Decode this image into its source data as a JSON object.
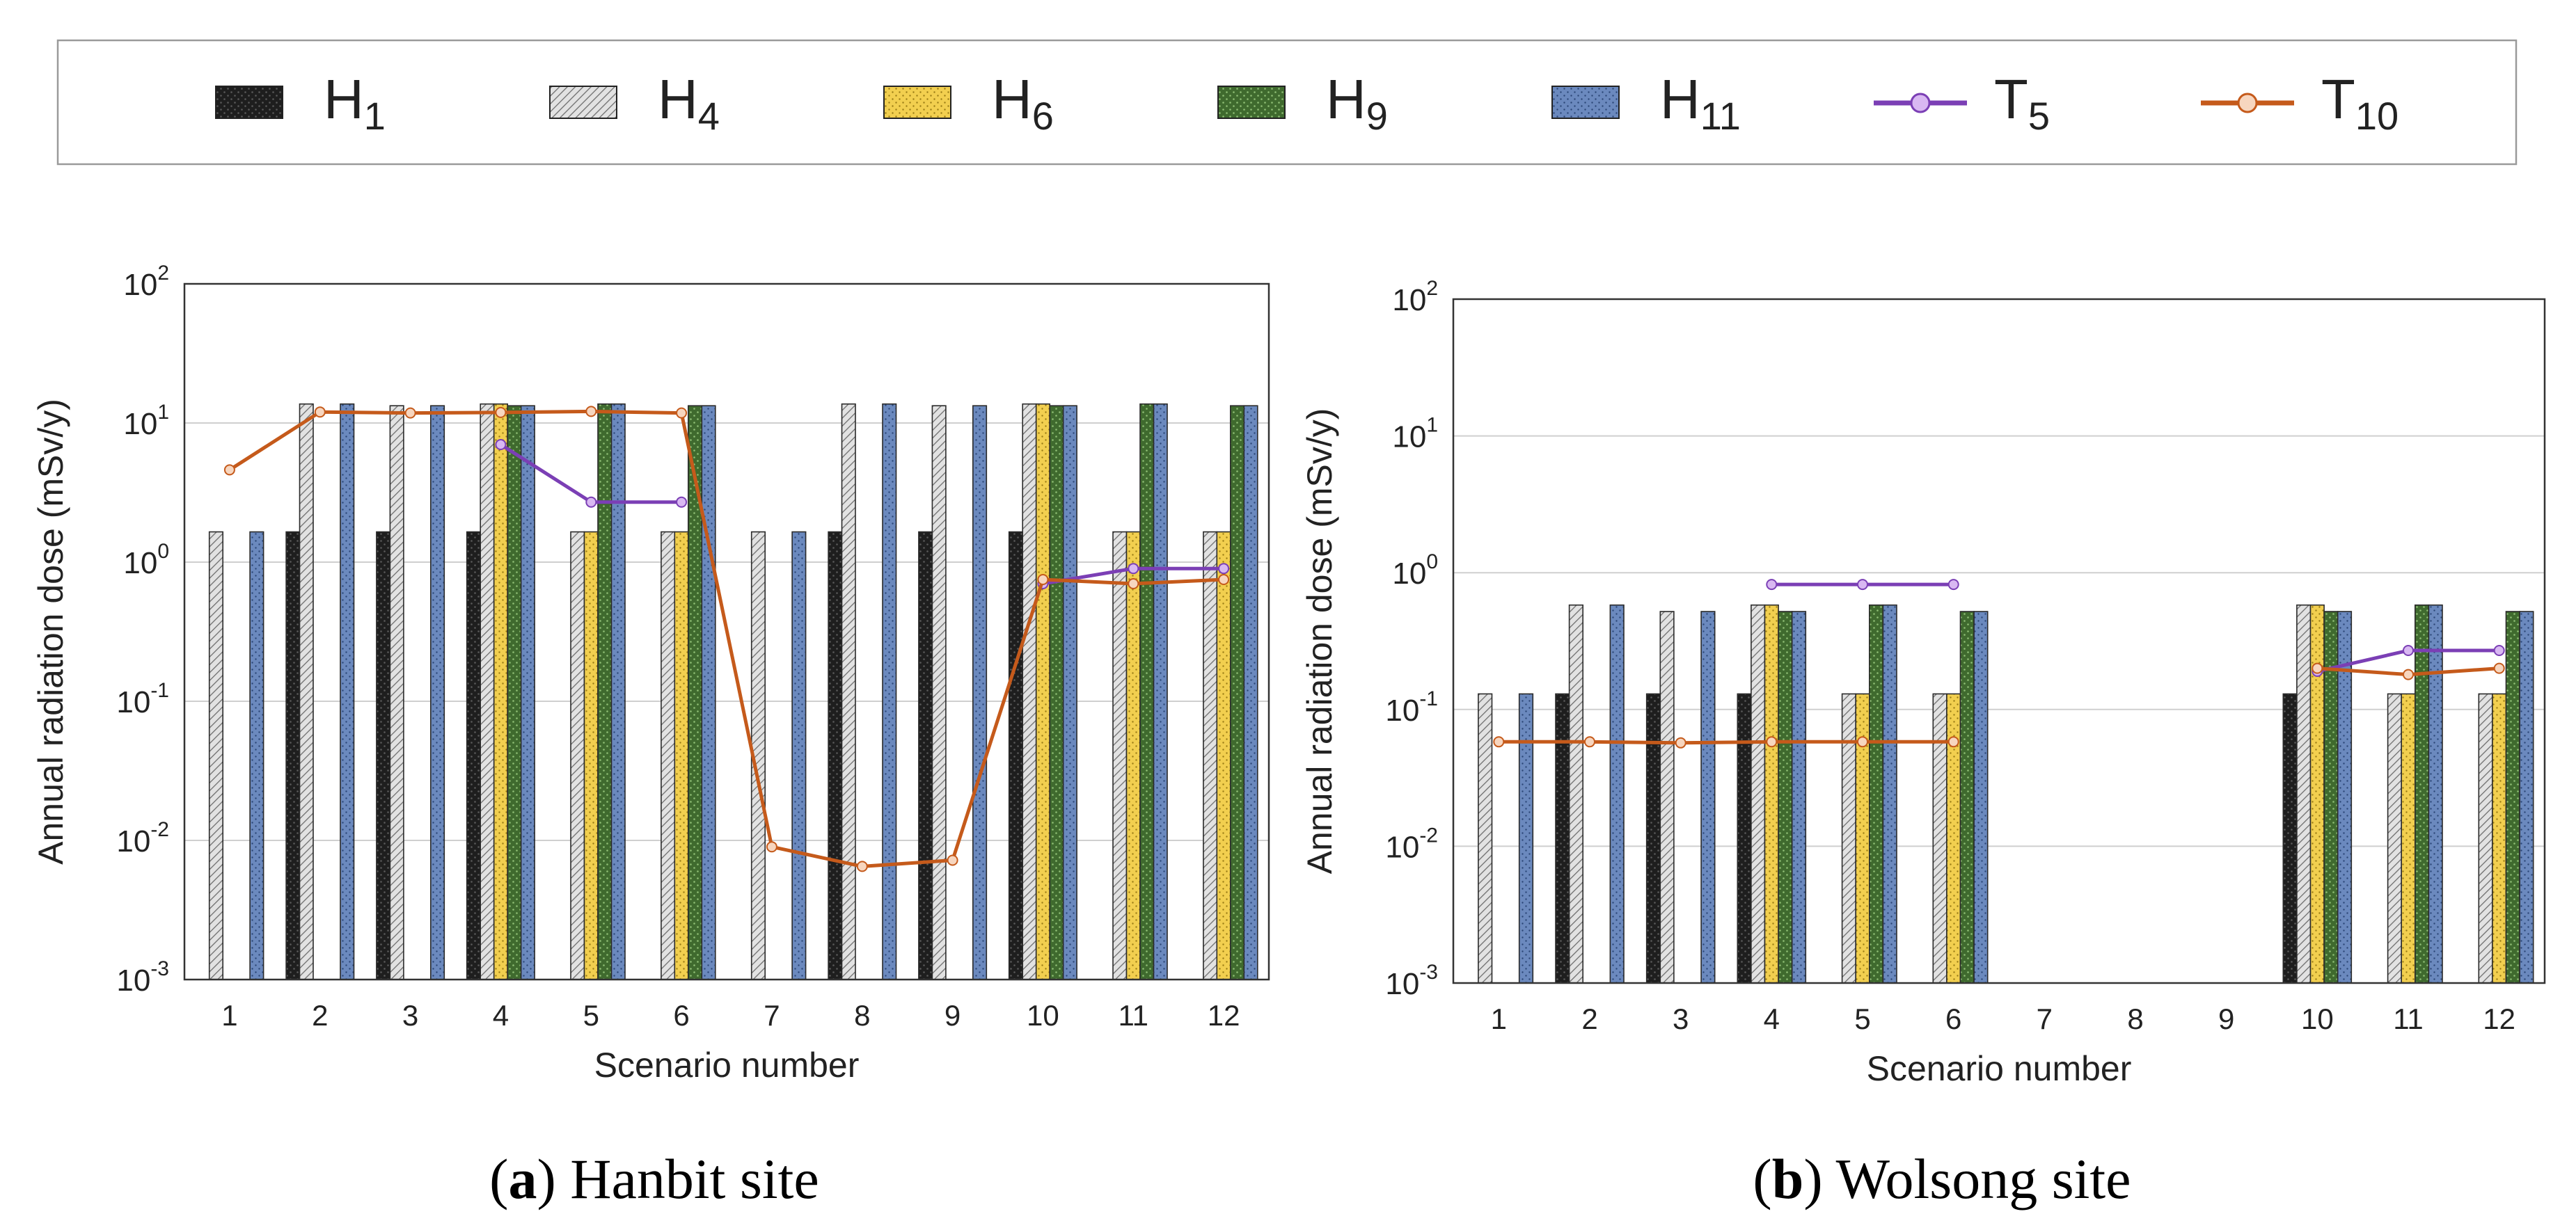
{
  "legend": {
    "items": [
      {
        "key": "H1",
        "label": "H",
        "sub": "1",
        "kind": "bar",
        "color": "#1e1e1e",
        "pattern": "dots-dark"
      },
      {
        "key": "H4",
        "label": "H",
        "sub": "4",
        "kind": "bar",
        "color": "#cfcfcf",
        "pattern": "hatch"
      },
      {
        "key": "H6",
        "label": "H",
        "sub": "6",
        "kind": "bar",
        "color": "#f2cf4f",
        "pattern": "dots-light"
      },
      {
        "key": "H9",
        "label": "H",
        "sub": "9",
        "kind": "bar",
        "color": "#3f6a2e",
        "pattern": "dots-light"
      },
      {
        "key": "H11",
        "label": "H",
        "sub": "11",
        "kind": "bar",
        "color": "#6b89be",
        "pattern": "dots-light"
      },
      {
        "key": "T5",
        "label": "T",
        "sub": "5",
        "kind": "line",
        "color": "#7b3fb5",
        "marker": "#d9b8f2"
      },
      {
        "key": "T10",
        "label": "T",
        "sub": "10",
        "kind": "line",
        "color": "#c55a1b",
        "marker": "#f7d6bf"
      }
    ]
  },
  "chart_data": [
    {
      "type": "bar",
      "title": "",
      "xlabel": "Scenario number",
      "ylabel": "Annual radiation dose (mSv/y)",
      "yscale": "log",
      "ylim": [
        0.001,
        100
      ],
      "ytick_bases": [
        "10",
        "10",
        "10",
        "10",
        "10",
        "10"
      ],
      "ytick_exps": [
        "-3",
        "-2",
        "-1",
        "0",
        "1",
        "2"
      ],
      "categories": [
        "1",
        "2",
        "3",
        "4",
        "5",
        "6",
        "7",
        "8",
        "9",
        "10",
        "11",
        "12"
      ],
      "caption": {
        "letter": "a",
        "text": "Hanbit site"
      },
      "series": [
        {
          "name": "H1",
          "values": [
            null,
            1.65,
            1.65,
            1.65,
            null,
            null,
            null,
            1.65,
            1.65,
            1.65,
            null,
            null
          ]
        },
        {
          "name": "H4",
          "values": [
            1.65,
            13.7,
            13.3,
            13.7,
            1.65,
            1.65,
            1.65,
            13.7,
            13.3,
            13.7,
            1.65,
            1.65
          ]
        },
        {
          "name": "H6",
          "values": [
            null,
            null,
            null,
            13.7,
            1.65,
            1.65,
            null,
            null,
            null,
            13.7,
            1.65,
            1.65
          ]
        },
        {
          "name": "H9",
          "values": [
            null,
            null,
            null,
            13.3,
            13.7,
            13.3,
            null,
            null,
            null,
            13.3,
            13.7,
            13.3
          ]
        },
        {
          "name": "H11",
          "values": [
            1.65,
            13.7,
            13.3,
            13.3,
            13.7,
            13.3,
            1.65,
            13.7,
            13.3,
            13.3,
            13.7,
            13.3
          ]
        }
      ],
      "lines": [
        {
          "name": "T5",
          "values": [
            null,
            null,
            null,
            7.0,
            2.7,
            2.7,
            null,
            null,
            null,
            0.7,
            0.9,
            0.9
          ]
        },
        {
          "name": "T10",
          "values": [
            4.6,
            12.0,
            11.8,
            11.9,
            12.1,
            11.8,
            0.009,
            0.0065,
            0.0072,
            0.75,
            0.7,
            0.75
          ]
        }
      ]
    },
    {
      "type": "bar",
      "title": "",
      "xlabel": "Scenario number",
      "ylabel": "Annual radiation dose (mSv/y)",
      "yscale": "log",
      "ylim": [
        0.001,
        100
      ],
      "ytick_bases": [
        "10",
        "10",
        "10",
        "10",
        "10",
        "10"
      ],
      "ytick_exps": [
        "-3",
        "-2",
        "-1",
        "0",
        "1",
        "2"
      ],
      "categories": [
        "1",
        "2",
        "3",
        "4",
        "5",
        "6",
        "7",
        "8",
        "9",
        "10",
        "11",
        "12"
      ],
      "caption": {
        "letter": "b",
        "text": "Wolsong site"
      },
      "series": [
        {
          "name": "H1",
          "values": [
            null,
            0.13,
            0.13,
            0.13,
            null,
            null,
            null,
            null,
            null,
            0.13,
            null,
            null
          ]
        },
        {
          "name": "H4",
          "values": [
            0.13,
            0.58,
            0.52,
            0.58,
            0.13,
            0.13,
            null,
            null,
            null,
            0.58,
            0.13,
            0.13
          ]
        },
        {
          "name": "H6",
          "values": [
            null,
            null,
            null,
            0.58,
            0.13,
            0.13,
            null,
            null,
            null,
            0.58,
            0.13,
            0.13
          ]
        },
        {
          "name": "H9",
          "values": [
            null,
            null,
            null,
            0.52,
            0.58,
            0.52,
            null,
            null,
            null,
            0.52,
            0.58,
            0.52
          ]
        },
        {
          "name": "H11",
          "values": [
            0.13,
            0.58,
            0.52,
            0.52,
            0.58,
            0.52,
            null,
            null,
            null,
            0.52,
            0.58,
            0.52
          ]
        }
      ],
      "lines": [
        {
          "name": "T5",
          "values": [
            null,
            null,
            null,
            0.82,
            0.82,
            0.82,
            null,
            null,
            null,
            0.19,
            0.27,
            0.27
          ]
        },
        {
          "name": "T10",
          "values": [
            0.058,
            0.058,
            0.057,
            0.058,
            0.058,
            0.058,
            null,
            null,
            null,
            0.2,
            0.18,
            0.2
          ]
        }
      ]
    }
  ]
}
